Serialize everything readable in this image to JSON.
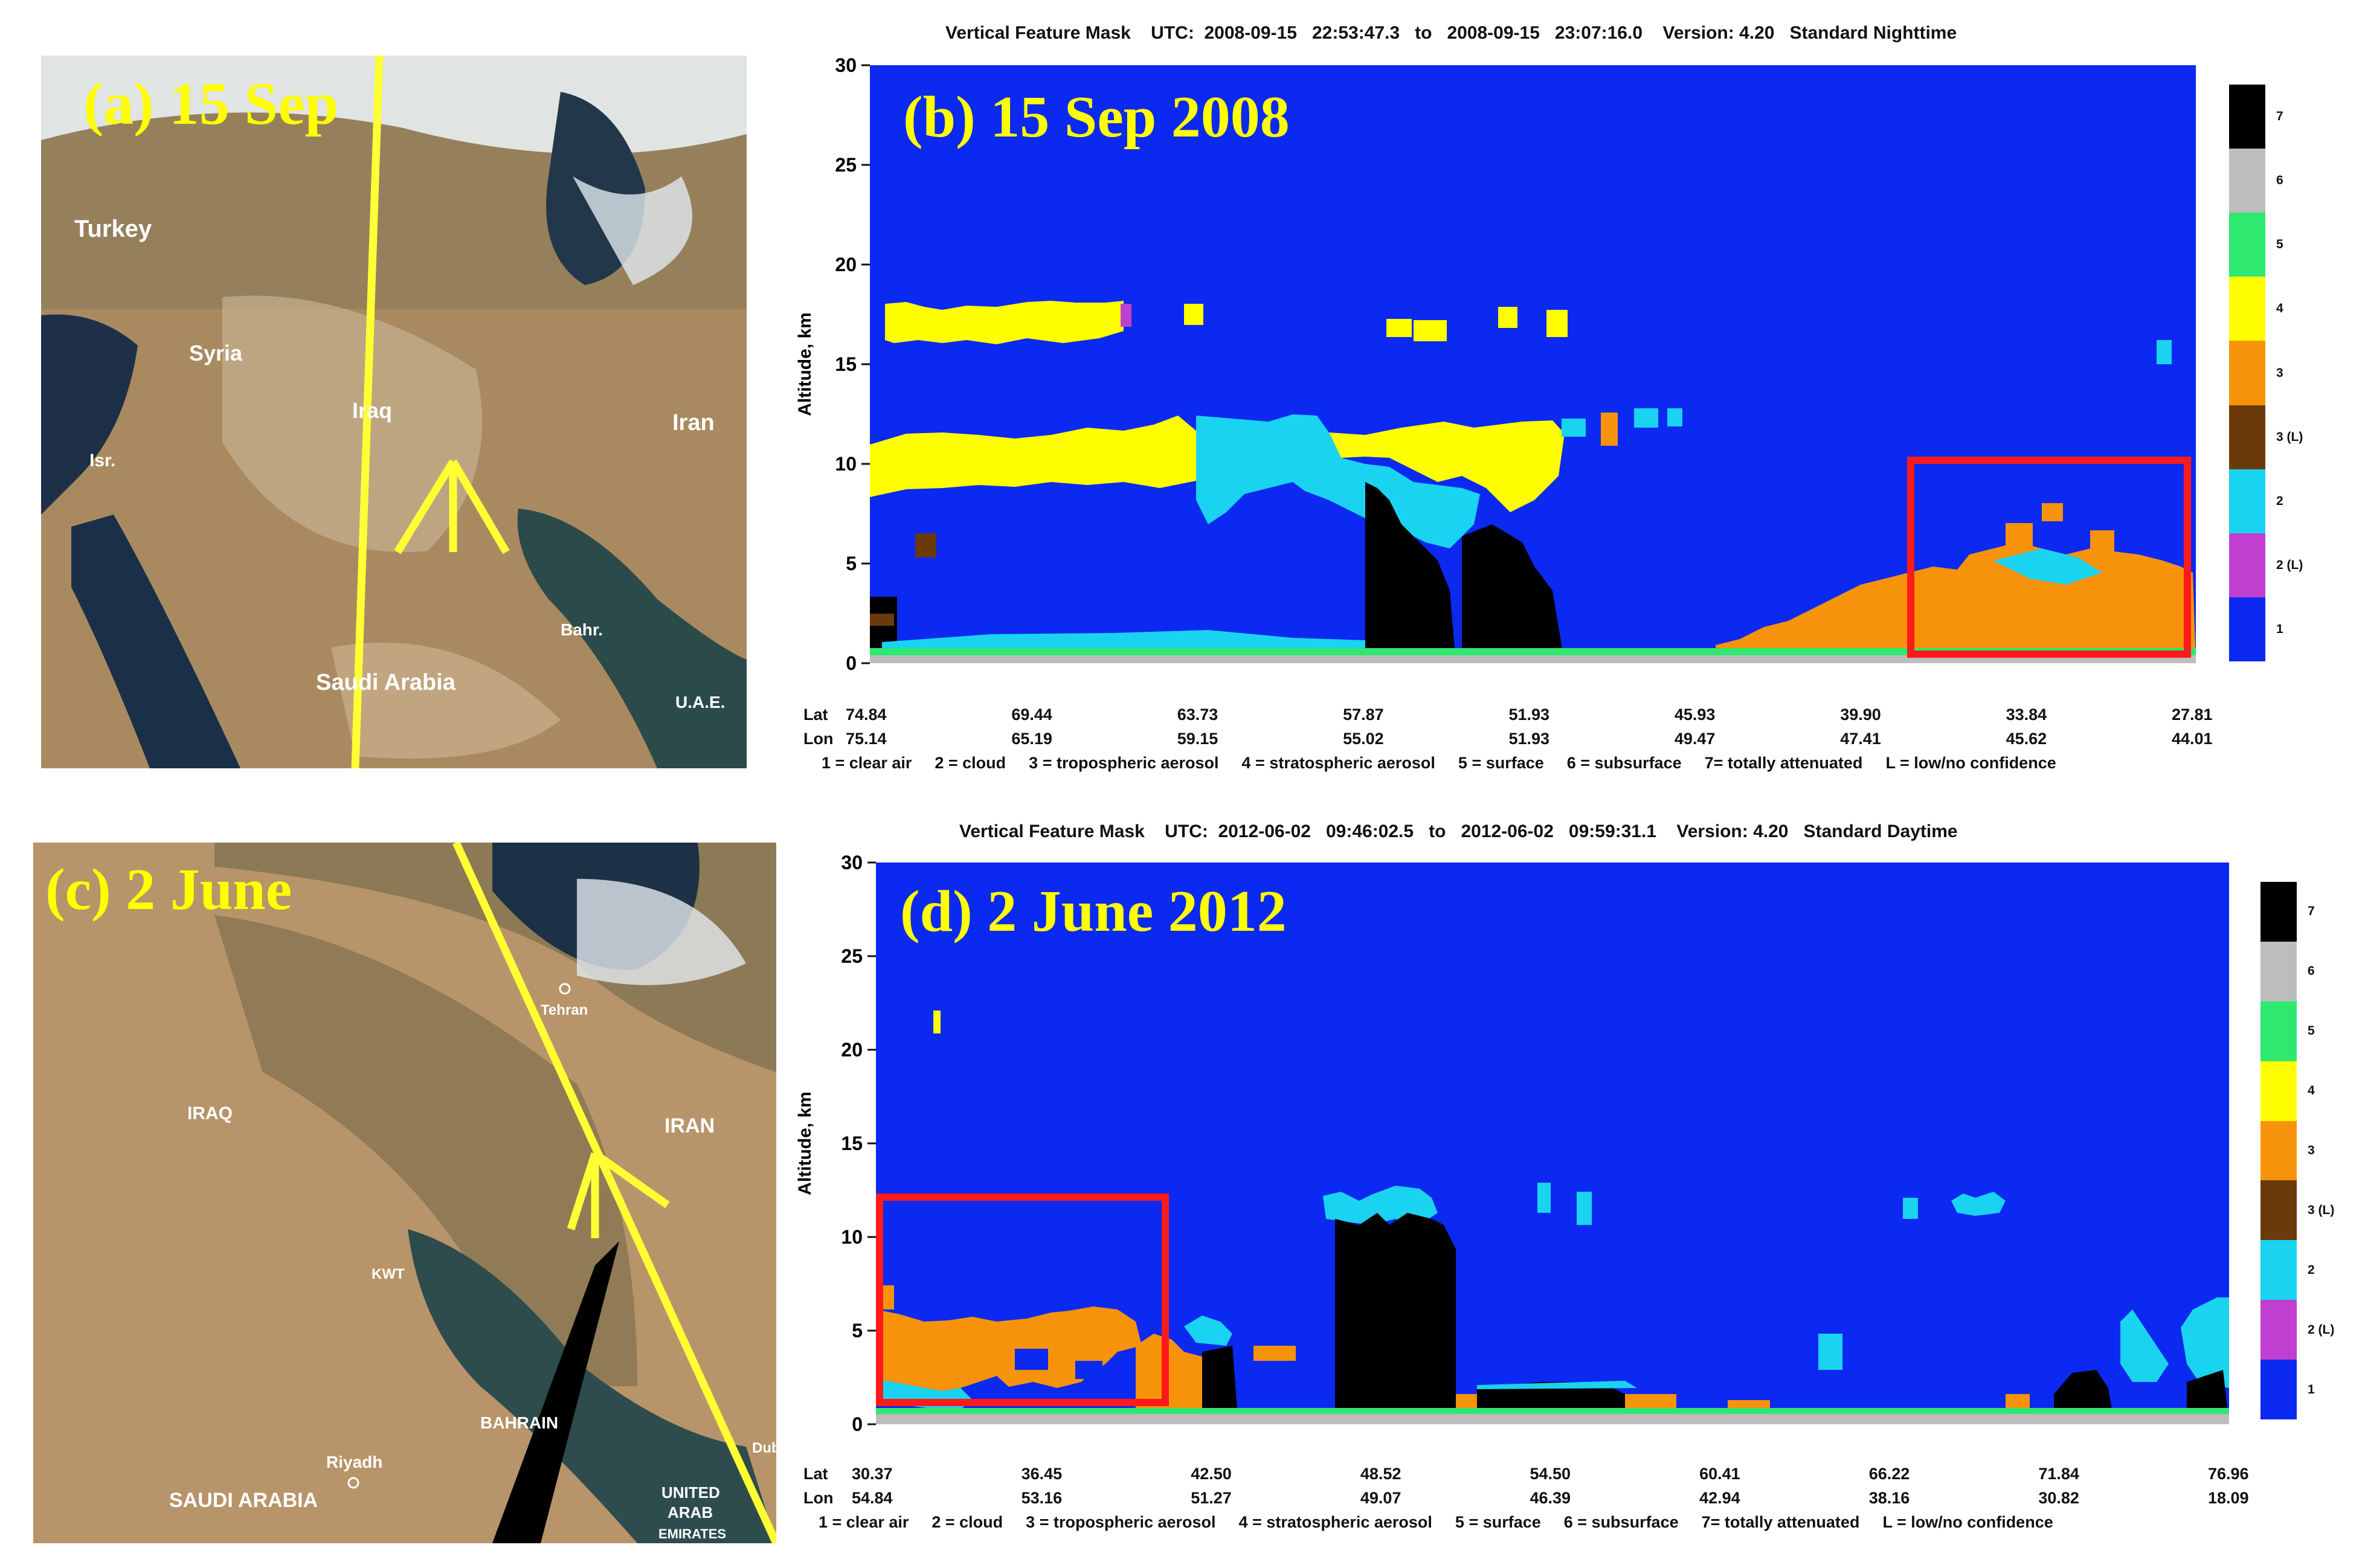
{
  "panels": {
    "a": {
      "caption": "(a) 15 Sep",
      "labels": [
        "Turkey",
        "Syria",
        "Iraq",
        "Iran",
        "Isr.",
        "Saudi Arabia",
        "Bahr.",
        "U.A.E."
      ]
    },
    "c": {
      "caption": "(c) 2 June",
      "labels": [
        "IRAQ",
        "IRAN",
        "KWT",
        "BAHRAIN",
        "Riyadh",
        "SAUDI ARABIA",
        "Tehran",
        "Dubai",
        "UNITED",
        "ARAB",
        "EMIRATES"
      ]
    }
  },
  "colors": {
    "clear_air": "#0b29f0",
    "cloud": "#1ad3f0",
    "cloud_low": "#c03fd0",
    "trop_aerosol": "#f7930a",
    "trop_aerosol_low": "#6b3a0a",
    "strat_aerosol": "#ffff00",
    "surface": "#2ee870",
    "subsurface": "#bdbdbd",
    "attenuated": "#000000",
    "box": "#ff1a1a",
    "track": "#ffff33"
  },
  "chart_data": [
    {
      "type": "heatmap",
      "panel": "b",
      "caption": "(b) 15 Sep 2008",
      "header": {
        "title": "Vertical Feature Mask",
        "utc_label": "UTC:",
        "start": "2008-09-15   22:53:47.3",
        "to": "to",
        "end": "2008-09-15   23:07:16.0",
        "version": "Version: 4.20",
        "mode": "Standard Nighttime"
      },
      "ylabel": "Altitude, km",
      "ylim": [
        0,
        30
      ],
      "yticks": [
        "0",
        "5",
        "10",
        "15",
        "20",
        "25",
        "30"
      ],
      "lat_label": "Lat",
      "lon_label": "Lon",
      "lat": [
        "74.84",
        "69.44",
        "63.73",
        "57.87",
        "51.93",
        "45.93",
        "39.90",
        "33.84",
        "27.81"
      ],
      "lon": [
        "75.14",
        "65.19",
        "59.15",
        "55.02",
        "51.93",
        "49.47",
        "47.41",
        "45.62",
        "44.01"
      ],
      "colorbar": [
        "1",
        "2 (L)",
        "2",
        "3 (L)",
        "3",
        "4",
        "5",
        "6",
        "7"
      ],
      "legend": [
        "1 = clear air",
        "2 = cloud",
        "3 = tropospheric aerosol",
        "4 = stratospheric aerosol",
        "5 = surface",
        "6 = subsurface",
        "7= totally attenuated",
        "L = low/no confidence"
      ],
      "highlight_box": {
        "x_from": "39.90",
        "x_to": "27.81",
        "alt_km": [
          0,
          10
        ]
      }
    },
    {
      "type": "heatmap",
      "panel": "d",
      "caption": "(d) 2 June 2012",
      "header": {
        "title": "Vertical Feature Mask",
        "utc_label": "UTC:",
        "start": "2012-06-02   09:46:02.5",
        "to": "to",
        "end": "2012-06-02   09:59:31.1",
        "version": "Version: 4.20",
        "mode": "Standard Daytime"
      },
      "ylabel": "Altitude, km",
      "ylim": [
        0,
        30
      ],
      "yticks": [
        "0",
        "5",
        "10",
        "15",
        "20",
        "25",
        "30"
      ],
      "lat_label": "Lat",
      "lon_label": "Lon",
      "lat": [
        "30.37",
        "36.45",
        "42.50",
        "48.52",
        "54.50",
        "60.41",
        "66.22",
        "71.84",
        "76.96"
      ],
      "lon": [
        "54.84",
        "53.16",
        "51.27",
        "49.07",
        "46.39",
        "42.94",
        "38.16",
        "30.82",
        "18.09"
      ],
      "colorbar": [
        "1",
        "2 (L)",
        "2",
        "3 (L)",
        "3",
        "4",
        "5",
        "6",
        "7"
      ],
      "legend": [
        "1 = clear air",
        "2 = cloud",
        "3 = tropospheric aerosol",
        "4 = stratospheric aerosol",
        "5 = surface",
        "6 = subsurface",
        "7= totally attenuated",
        "L = low/no confidence"
      ],
      "highlight_box": {
        "x_from": "30.37",
        "x_to": "42.50",
        "alt_km": [
          0,
          11
        ]
      }
    }
  ]
}
